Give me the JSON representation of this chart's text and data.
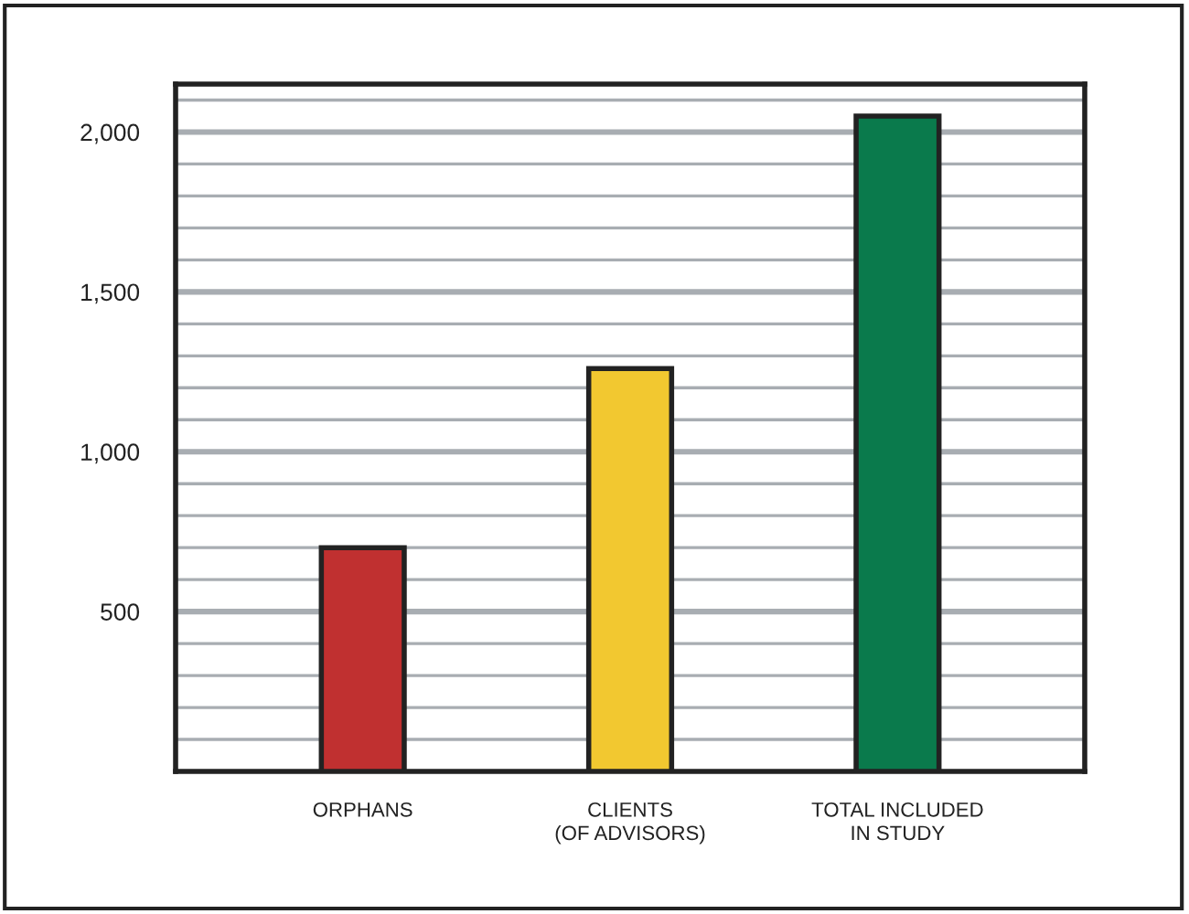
{
  "chart_data": {
    "type": "bar",
    "categories": [
      "ORPHANS",
      "CLIENTS\n(OF ADVISORS)",
      "TOTAL INCLUDED\nIN STUDY"
    ],
    "colors": [
      "#c03030",
      "#f2c830",
      "#0a7a4c"
    ],
    "values": [
      700,
      1260,
      2050
    ],
    "ylim": [
      0,
      2150
    ],
    "yticks": [
      {
        "value": 100,
        "label": null
      },
      {
        "value": 200,
        "label": null
      },
      {
        "value": 300,
        "label": null
      },
      {
        "value": 400,
        "label": null
      },
      {
        "value": 500,
        "label": "500"
      },
      {
        "value": 600,
        "label": null
      },
      {
        "value": 700,
        "label": null
      },
      {
        "value": 800,
        "label": null
      },
      {
        "value": 900,
        "label": null
      },
      {
        "value": 1000,
        "label": "1,000"
      },
      {
        "value": 1100,
        "label": null
      },
      {
        "value": 1200,
        "label": null
      },
      {
        "value": 1300,
        "label": null
      },
      {
        "value": 1400,
        "label": null
      },
      {
        "value": 1500,
        "label": "1,500"
      },
      {
        "value": 1600,
        "label": null
      },
      {
        "value": 1700,
        "label": null
      },
      {
        "value": 1800,
        "label": null
      },
      {
        "value": 1900,
        "label": null
      },
      {
        "value": 2000,
        "label": "2,000"
      },
      {
        "value": 2100,
        "label": null
      }
    ],
    "grid": "y"
  }
}
